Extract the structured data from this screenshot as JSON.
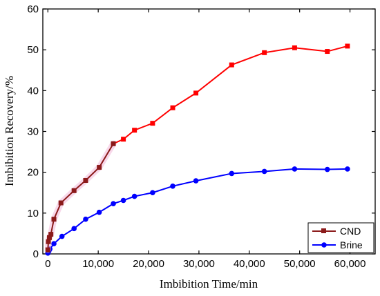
{
  "chart_data": {
    "type": "line",
    "title": "",
    "xlabel": "Imbibition Time/min",
    "ylabel": "Imbibition Recovery/%",
    "xlim": [
      -1000,
      65000
    ],
    "ylim": [
      0,
      60
    ],
    "x_ticks": [
      0,
      10000,
      20000,
      30000,
      40000,
      50000,
      60000
    ],
    "x_tick_labels": [
      "0",
      "10,000",
      "20,000",
      "30,000",
      "40,000",
      "50,000",
      "60,000"
    ],
    "y_ticks": [
      0,
      10,
      20,
      30,
      40,
      50,
      60
    ],
    "y_tick_labels": [
      "0",
      "10",
      "20",
      "30",
      "40",
      "50",
      "60"
    ],
    "grid": false,
    "legend_position": "bottom-right",
    "series": [
      {
        "name": "CND",
        "marker": "square",
        "color": "#ff0000",
        "early_color": "#8b1a1a",
        "x": [
          0,
          100,
          300,
          600,
          1200,
          2600,
          5200,
          7500,
          10200,
          13000,
          15000,
          17200,
          20800,
          24800,
          29400,
          36500,
          43000,
          49000,
          55500,
          59500
        ],
        "y": [
          1.0,
          3.0,
          4.0,
          4.8,
          8.5,
          12.5,
          15.5,
          18.0,
          21.2,
          27.0,
          28.1,
          30.3,
          32.0,
          35.8,
          39.4,
          46.3,
          49.3,
          50.5,
          49.6,
          50.9
        ]
      },
      {
        "name": "Brine",
        "marker": "circle",
        "color": "#0000ff",
        "x": [
          0,
          200,
          400,
          1200,
          2800,
          5200,
          7500,
          10200,
          13000,
          15000,
          17200,
          20800,
          24800,
          29400,
          36500,
          43000,
          49000,
          55500,
          59500
        ],
        "y": [
          0.2,
          0.7,
          1.2,
          2.5,
          4.3,
          6.2,
          8.5,
          10.2,
          12.3,
          13.1,
          14.1,
          15.0,
          16.6,
          17.9,
          19.7,
          20.2,
          20.8,
          20.7,
          20.8
        ]
      }
    ]
  }
}
